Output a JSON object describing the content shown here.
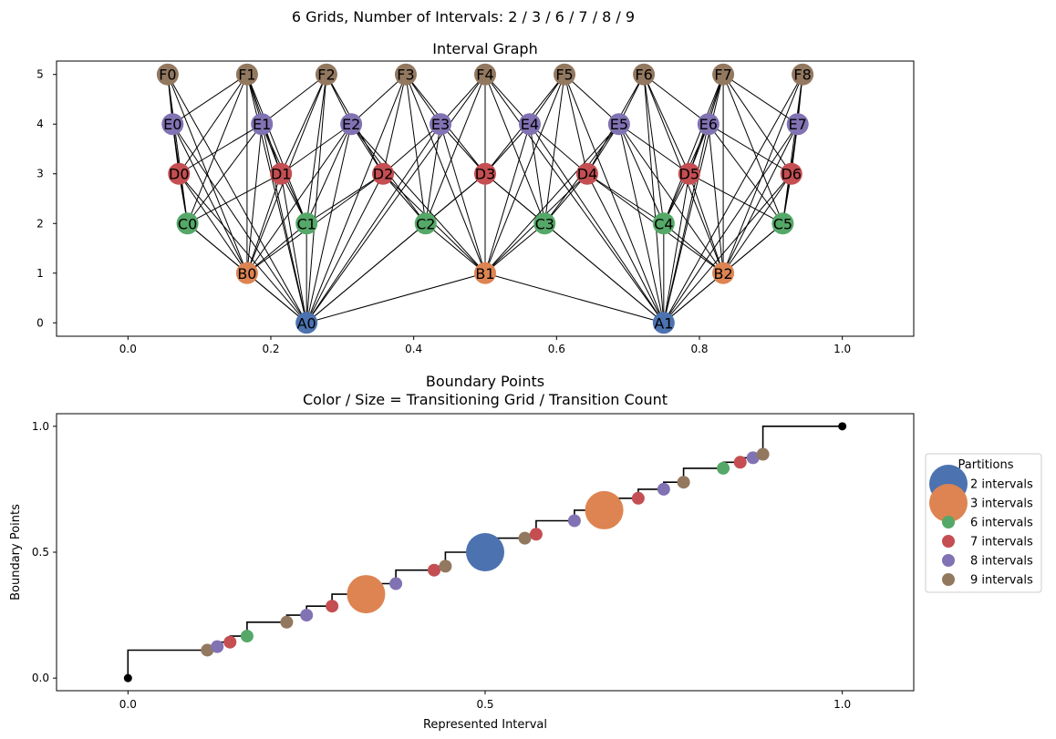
{
  "suptitle": "6 Grids, Number of Intervals: 2 / 3 / 6 / 7 / 8 / 9",
  "colors": {
    "A": "#4c72b0",
    "B": "#dd8452",
    "C": "#55a868",
    "D": "#c44e52",
    "E": "#8172b3",
    "F": "#937860",
    "endpoint": "#000000"
  },
  "chart_data": [
    {
      "type": "scatter",
      "title": "Interval Graph",
      "xlim": [
        -0.1,
        1.1
      ],
      "ylim": [
        -0.27,
        5.27
      ],
      "xticks": [
        0.0,
        0.2,
        0.4,
        0.6,
        0.8,
        1.0
      ],
      "xtick_labels": [
        "0.0",
        "0.2",
        "0.4",
        "0.6",
        "0.8",
        "1.0"
      ],
      "yticks": [
        0,
        1,
        2,
        3,
        4,
        5
      ],
      "ytick_labels": [
        "0",
        "1",
        "2",
        "3",
        "4",
        "5"
      ],
      "grid": false,
      "groups": [
        {
          "prefix": "A",
          "level": 0,
          "intervals": 2
        },
        {
          "prefix": "B",
          "level": 1,
          "intervals": 3
        },
        {
          "prefix": "C",
          "level": 2,
          "intervals": 6
        },
        {
          "prefix": "D",
          "level": 3,
          "intervals": 7
        },
        {
          "prefix": "E",
          "level": 4,
          "intervals": 8
        },
        {
          "prefix": "F",
          "level": 5,
          "intervals": 9
        }
      ],
      "nodes": [
        {
          "label": "A0",
          "x": 0.25,
          "y": 0,
          "group": "A"
        },
        {
          "label": "A1",
          "x": 0.75,
          "y": 0,
          "group": "A"
        },
        {
          "label": "B0",
          "x": 0.1667,
          "y": 1,
          "group": "B"
        },
        {
          "label": "B1",
          "x": 0.5,
          "y": 1,
          "group": "B"
        },
        {
          "label": "B2",
          "x": 0.8333,
          "y": 1,
          "group": "B"
        },
        {
          "label": "C0",
          "x": 0.0833,
          "y": 2,
          "group": "C"
        },
        {
          "label": "C1",
          "x": 0.25,
          "y": 2,
          "group": "C"
        },
        {
          "label": "C2",
          "x": 0.4167,
          "y": 2,
          "group": "C"
        },
        {
          "label": "C3",
          "x": 0.5833,
          "y": 2,
          "group": "C"
        },
        {
          "label": "C4",
          "x": 0.75,
          "y": 2,
          "group": "C"
        },
        {
          "label": "C5",
          "x": 0.9167,
          "y": 2,
          "group": "C"
        },
        {
          "label": "D0",
          "x": 0.0714,
          "y": 3,
          "group": "D"
        },
        {
          "label": "D1",
          "x": 0.2143,
          "y": 3,
          "group": "D"
        },
        {
          "label": "D2",
          "x": 0.3571,
          "y": 3,
          "group": "D"
        },
        {
          "label": "D3",
          "x": 0.5,
          "y": 3,
          "group": "D"
        },
        {
          "label": "D4",
          "x": 0.6429,
          "y": 3,
          "group": "D"
        },
        {
          "label": "D5",
          "x": 0.7857,
          "y": 3,
          "group": "D"
        },
        {
          "label": "D6",
          "x": 0.9286,
          "y": 3,
          "group": "D"
        },
        {
          "label": "E0",
          "x": 0.0625,
          "y": 4,
          "group": "E"
        },
        {
          "label": "E1",
          "x": 0.1875,
          "y": 4,
          "group": "E"
        },
        {
          "label": "E2",
          "x": 0.3125,
          "y": 4,
          "group": "E"
        },
        {
          "label": "E3",
          "x": 0.4375,
          "y": 4,
          "group": "E"
        },
        {
          "label": "E4",
          "x": 0.5625,
          "y": 4,
          "group": "E"
        },
        {
          "label": "E5",
          "x": 0.6875,
          "y": 4,
          "group": "E"
        },
        {
          "label": "E6",
          "x": 0.8125,
          "y": 4,
          "group": "E"
        },
        {
          "label": "E7",
          "x": 0.9375,
          "y": 4,
          "group": "E"
        },
        {
          "label": "F0",
          "x": 0.0556,
          "y": 5,
          "group": "F"
        },
        {
          "label": "F1",
          "x": 0.1667,
          "y": 5,
          "group": "F"
        },
        {
          "label": "F2",
          "x": 0.2778,
          "y": 5,
          "group": "F"
        },
        {
          "label": "F3",
          "x": 0.3889,
          "y": 5,
          "group": "F"
        },
        {
          "label": "F4",
          "x": 0.5,
          "y": 5,
          "group": "F"
        },
        {
          "label": "F5",
          "x": 0.6111,
          "y": 5,
          "group": "F"
        },
        {
          "label": "F6",
          "x": 0.7222,
          "y": 5,
          "group": "F"
        },
        {
          "label": "F7",
          "x": 0.8333,
          "y": 5,
          "group": "F"
        },
        {
          "label": "F8",
          "x": 0.9444,
          "y": 5,
          "group": "F"
        }
      ],
      "edges_rule": "edge between nodes of different grids whose intervals overlap"
    },
    {
      "type": "scatter",
      "title": "Boundary Points\nColor / Size = Transitioning Grid / Transition Count",
      "xlabel": "Represented Interval",
      "ylabel": "Boundary Points",
      "xlim": [
        -0.1,
        1.1
      ],
      "ylim": [
        -0.05,
        1.05
      ],
      "xticks": [
        0.0,
        0.5,
        1.0
      ],
      "xtick_labels": [
        "0.0",
        "0.5",
        "1.0"
      ],
      "yticks": [
        0.0,
        0.5,
        1.0
      ],
      "ytick_labels": [
        "0.0",
        "0.5",
        "1.0"
      ],
      "grid": false,
      "legend": {
        "title": "Partitions",
        "placement": "outside-right",
        "entries": [
          {
            "label": "2 intervals",
            "group": "A"
          },
          {
            "label": "3 intervals",
            "group": "B"
          },
          {
            "label": "6 intervals",
            "group": "C"
          },
          {
            "label": "7 intervals",
            "group": "D"
          },
          {
            "label": "8 intervals",
            "group": "E"
          },
          {
            "label": "9 intervals",
            "group": "F"
          }
        ]
      },
      "endpoints": [
        {
          "x": 0.0,
          "y": 0.0
        },
        {
          "x": 1.0,
          "y": 1.0
        }
      ],
      "step_line": [
        [
          0.0,
          0.0
        ],
        [
          0.0,
          0.1111
        ],
        [
          0.1111,
          0.1111
        ],
        [
          0.1111,
          0.125
        ],
        [
          0.125,
          0.125
        ],
        [
          0.125,
          0.1429
        ],
        [
          0.1429,
          0.1429
        ],
        [
          0.1429,
          0.1667
        ],
        [
          0.1667,
          0.1667
        ],
        [
          0.1667,
          0.2222
        ],
        [
          0.2222,
          0.2222
        ],
        [
          0.2222,
          0.25
        ],
        [
          0.25,
          0.25
        ],
        [
          0.25,
          0.2857
        ],
        [
          0.2857,
          0.2857
        ],
        [
          0.2857,
          0.3333
        ],
        [
          0.3333,
          0.3333
        ],
        [
          0.3333,
          0.375
        ],
        [
          0.375,
          0.375
        ],
        [
          0.375,
          0.4286
        ],
        [
          0.4286,
          0.4286
        ],
        [
          0.4286,
          0.4444
        ],
        [
          0.4444,
          0.4444
        ],
        [
          0.4444,
          0.5
        ],
        [
          0.5,
          0.5
        ],
        [
          0.5,
          0.5556
        ],
        [
          0.5556,
          0.5556
        ],
        [
          0.5556,
          0.5714
        ],
        [
          0.5714,
          0.5714
        ],
        [
          0.5714,
          0.625
        ],
        [
          0.625,
          0.625
        ],
        [
          0.625,
          0.6667
        ],
        [
          0.6667,
          0.6667
        ],
        [
          0.6667,
          0.7143
        ],
        [
          0.7143,
          0.7143
        ],
        [
          0.7143,
          0.75
        ],
        [
          0.75,
          0.75
        ],
        [
          0.75,
          0.7778
        ],
        [
          0.7778,
          0.7778
        ],
        [
          0.7778,
          0.8333
        ],
        [
          0.8333,
          0.8333
        ],
        [
          0.8333,
          0.8571
        ],
        [
          0.8571,
          0.8571
        ],
        [
          0.8571,
          0.875
        ],
        [
          0.875,
          0.875
        ],
        [
          0.875,
          0.8889
        ],
        [
          0.8889,
          0.8889
        ],
        [
          0.8889,
          1.0
        ],
        [
          1.0,
          1.0
        ]
      ],
      "points": [
        {
          "x": 0.1111,
          "y": 0.1111,
          "group": "F",
          "count": 1
        },
        {
          "x": 0.125,
          "y": 0.125,
          "group": "E",
          "count": 1
        },
        {
          "x": 0.1429,
          "y": 0.1429,
          "group": "D",
          "count": 1
        },
        {
          "x": 0.1667,
          "y": 0.1667,
          "group": "C",
          "count": 1
        },
        {
          "x": 0.2222,
          "y": 0.2222,
          "group": "F",
          "count": 1
        },
        {
          "x": 0.25,
          "y": 0.25,
          "group": "E",
          "count": 1
        },
        {
          "x": 0.2857,
          "y": 0.2857,
          "group": "D",
          "count": 1
        },
        {
          "x": 0.3333,
          "y": 0.3333,
          "group": "B",
          "count": 3
        },
        {
          "x": 0.375,
          "y": 0.375,
          "group": "E",
          "count": 1
        },
        {
          "x": 0.4286,
          "y": 0.4286,
          "group": "D",
          "count": 1
        },
        {
          "x": 0.4444,
          "y": 0.4444,
          "group": "F",
          "count": 1
        },
        {
          "x": 0.5,
          "y": 0.5,
          "group": "A",
          "count": 3
        },
        {
          "x": 0.5556,
          "y": 0.5556,
          "group": "F",
          "count": 1
        },
        {
          "x": 0.5714,
          "y": 0.5714,
          "group": "D",
          "count": 1
        },
        {
          "x": 0.625,
          "y": 0.625,
          "group": "E",
          "count": 1
        },
        {
          "x": 0.6667,
          "y": 0.6667,
          "group": "B",
          "count": 3
        },
        {
          "x": 0.7143,
          "y": 0.7143,
          "group": "D",
          "count": 1
        },
        {
          "x": 0.75,
          "y": 0.75,
          "group": "E",
          "count": 1
        },
        {
          "x": 0.7778,
          "y": 0.7778,
          "group": "F",
          "count": 1
        },
        {
          "x": 0.8333,
          "y": 0.8333,
          "group": "C",
          "count": 1
        },
        {
          "x": 0.8571,
          "y": 0.8571,
          "group": "D",
          "count": 1
        },
        {
          "x": 0.875,
          "y": 0.875,
          "group": "E",
          "count": 1
        },
        {
          "x": 0.8889,
          "y": 0.8889,
          "group": "F",
          "count": 1
        }
      ]
    }
  ]
}
